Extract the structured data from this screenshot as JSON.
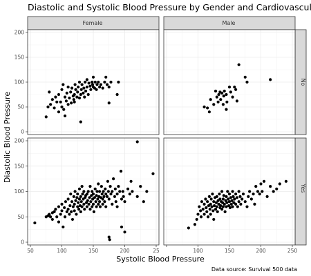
{
  "chart_data": {
    "type": "scatter",
    "title": "Diastolic and Systolic Blood Pressure by Gender and Cardiovascular D",
    "xlabel": "Systolic Blood Pressure",
    "ylabel": "Diastolic Blood Pressure",
    "caption": "Data source: Survival 500 data",
    "facet_columns": [
      "Female",
      "Male"
    ],
    "facet_rows": [
      "No",
      "Yes"
    ],
    "xlim": [
      50,
      250
    ],
    "ylim": [
      0,
      200
    ],
    "x_ticks": [
      50,
      100,
      150,
      200,
      250
    ],
    "x_tick_labels_left": [
      "50",
      "100",
      "150",
      "200",
      "25"
    ],
    "x_tick_labels_right": [
      "",
      "100",
      "150",
      "200",
      "250"
    ],
    "y_ticks": [
      0,
      50,
      100,
      150,
      200
    ],
    "y_tick_labels": [
      "0",
      "50",
      "100",
      "150",
      "200"
    ],
    "grid": true,
    "point_color": "#000000",
    "panels": [
      {
        "col": "Female",
        "row": "No",
        "points": [
          [
            75,
            30
          ],
          [
            78,
            50
          ],
          [
            80,
            80
          ],
          [
            82,
            55
          ],
          [
            85,
            65
          ],
          [
            88,
            48
          ],
          [
            90,
            70
          ],
          [
            92,
            60
          ],
          [
            95,
            40
          ],
          [
            95,
            75
          ],
          [
            98,
            60
          ],
          [
            100,
            50
          ],
          [
            100,
            85
          ],
          [
            102,
            95
          ],
          [
            103,
            45
          ],
          [
            105,
            32
          ],
          [
            105,
            70
          ],
          [
            107,
            62
          ],
          [
            108,
            78
          ],
          [
            110,
            55
          ],
          [
            110,
            90
          ],
          [
            112,
            68
          ],
          [
            114,
            80
          ],
          [
            115,
            58
          ],
          [
            116,
            88
          ],
          [
            118,
            72
          ],
          [
            119,
            65
          ],
          [
            120,
            60
          ],
          [
            120,
            75
          ],
          [
            121,
            95
          ],
          [
            122,
            85
          ],
          [
            124,
            70
          ],
          [
            125,
            80
          ],
          [
            126,
            90
          ],
          [
            128,
            68
          ],
          [
            128,
            100
          ],
          [
            130,
            20
          ],
          [
            130,
            75
          ],
          [
            131,
            85
          ],
          [
            132,
            95
          ],
          [
            134,
            78
          ],
          [
            135,
            88
          ],
          [
            136,
            70
          ],
          [
            137,
            100
          ],
          [
            138,
            82
          ],
          [
            140,
            90
          ],
          [
            140,
            105
          ],
          [
            142,
            75
          ],
          [
            143,
            98
          ],
          [
            145,
            92
          ],
          [
            146,
            85
          ],
          [
            148,
            100
          ],
          [
            149,
            95
          ],
          [
            150,
            90
          ],
          [
            150,
            110
          ],
          [
            152,
            88
          ],
          [
            153,
            100
          ],
          [
            155,
            85
          ],
          [
            156,
            95
          ],
          [
            158,
            100
          ],
          [
            160,
            90
          ],
          [
            162,
            95
          ],
          [
            165,
            88
          ],
          [
            168,
            100
          ],
          [
            170,
            110
          ],
          [
            172,
            95
          ],
          [
            175,
            90
          ],
          [
            175,
            58
          ],
          [
            178,
            100
          ],
          [
            188,
            75
          ],
          [
            190,
            100
          ]
        ]
      },
      {
        "col": "Male",
        "row": "No",
        "points": [
          [
            110,
            50
          ],
          [
            115,
            48
          ],
          [
            118,
            40
          ],
          [
            120,
            65
          ],
          [
            125,
            55
          ],
          [
            128,
            82
          ],
          [
            130,
            70
          ],
          [
            132,
            60
          ],
          [
            133,
            75
          ],
          [
            135,
            80
          ],
          [
            136,
            65
          ],
          [
            138,
            78
          ],
          [
            140,
            55
          ],
          [
            141,
            72
          ],
          [
            142,
            82
          ],
          [
            145,
            45
          ],
          [
            145,
            75
          ],
          [
            146,
            60
          ],
          [
            150,
            90
          ],
          [
            152,
            80
          ],
          [
            155,
            70
          ],
          [
            158,
            90
          ],
          [
            160,
            85
          ],
          [
            162,
            62
          ],
          [
            165,
            135
          ],
          [
            175,
            110
          ],
          [
            178,
            100
          ],
          [
            215,
            105
          ]
        ]
      },
      {
        "col": "Female",
        "row": "Yes",
        "points": [
          [
            57,
            38
          ],
          [
            75,
            50
          ],
          [
            78,
            52
          ],
          [
            80,
            55
          ],
          [
            82,
            50
          ],
          [
            85,
            58
          ],
          [
            85,
            45
          ],
          [
            88,
            60
          ],
          [
            90,
            65
          ],
          [
            92,
            50
          ],
          [
            95,
            70
          ],
          [
            95,
            40
          ],
          [
            98,
            55
          ],
          [
            100,
            62
          ],
          [
            100,
            75
          ],
          [
            102,
            30
          ],
          [
            104,
            68
          ],
          [
            105,
            50
          ],
          [
            106,
            80
          ],
          [
            108,
            60
          ],
          [
            110,
            65
          ],
          [
            110,
            85
          ],
          [
            112,
            55
          ],
          [
            113,
            72
          ],
          [
            114,
            95
          ],
          [
            115,
            60
          ],
          [
            116,
            80
          ],
          [
            117,
            45
          ],
          [
            118,
            70
          ],
          [
            119,
            90
          ],
          [
            120,
            62
          ],
          [
            120,
            75
          ],
          [
            121,
            100
          ],
          [
            122,
            82
          ],
          [
            123,
            55
          ],
          [
            124,
            88
          ],
          [
            125,
            70
          ],
          [
            125,
            95
          ],
          [
            126,
            78
          ],
          [
            127,
            65
          ],
          [
            128,
            105
          ],
          [
            128,
            85
          ],
          [
            129,
            72
          ],
          [
            130,
            90
          ],
          [
            130,
            60
          ],
          [
            131,
            80
          ],
          [
            132,
            110
          ],
          [
            132,
            70
          ],
          [
            133,
            95
          ],
          [
            134,
            85
          ],
          [
            135,
            75
          ],
          [
            135,
            100
          ],
          [
            136,
            65
          ],
          [
            137,
            88
          ],
          [
            138,
            92
          ],
          [
            139,
            78
          ],
          [
            140,
            70
          ],
          [
            140,
            95
          ],
          [
            141,
            82
          ],
          [
            142,
            100
          ],
          [
            143,
            75
          ],
          [
            144,
            88
          ],
          [
            145,
            110
          ],
          [
            145,
            65
          ],
          [
            146,
            80
          ],
          [
            147,
            92
          ],
          [
            148,
            70
          ],
          [
            148,
            100
          ],
          [
            149,
            85
          ],
          [
            150,
            75
          ],
          [
            150,
            95
          ],
          [
            151,
            60
          ],
          [
            152,
            88
          ],
          [
            153,
            105
          ],
          [
            154,
            80
          ],
          [
            155,
            92
          ],
          [
            155,
            70
          ],
          [
            156,
            100
          ],
          [
            157,
            85
          ],
          [
            158,
            75
          ],
          [
            158,
            115
          ],
          [
            159,
            90
          ],
          [
            160,
            80
          ],
          [
            160,
            100
          ],
          [
            161,
            70
          ],
          [
            162,
            88
          ],
          [
            163,
            110
          ],
          [
            164,
            95
          ],
          [
            165,
            85
          ],
          [
            165,
            75
          ],
          [
            166,
            100
          ],
          [
            167,
            90
          ],
          [
            168,
            80
          ],
          [
            169,
            105
          ],
          [
            170,
            95
          ],
          [
            170,
            70
          ],
          [
            172,
            90
          ],
          [
            173,
            120
          ],
          [
            174,
            100
          ],
          [
            175,
            85
          ],
          [
            175,
            10
          ],
          [
            176,
            5
          ],
          [
            177,
            110
          ],
          [
            178,
            95
          ],
          [
            180,
            100
          ],
          [
            180,
            75
          ],
          [
            182,
            125
          ],
          [
            184,
            90
          ],
          [
            185,
            105
          ],
          [
            186,
            80
          ],
          [
            188,
            95
          ],
          [
            188,
            70
          ],
          [
            190,
            110
          ],
          [
            192,
            100
          ],
          [
            194,
            140
          ],
          [
            195,
            85
          ],
          [
            195,
            30
          ],
          [
            197,
            100
          ],
          [
            198,
            90
          ],
          [
            200,
            80
          ],
          [
            200,
            20
          ],
          [
            205,
            105
          ],
          [
            208,
            95
          ],
          [
            210,
            120
          ],
          [
            212,
            100
          ],
          [
            220,
            90
          ],
          [
            220,
            198
          ],
          [
            225,
            110
          ],
          [
            230,
            80
          ],
          [
            235,
            100
          ],
          [
            245,
            135
          ]
        ]
      },
      {
        "col": "Male",
        "row": "Yes",
        "points": [
          [
            85,
            28
          ],
          [
            95,
            35
          ],
          [
            98,
            45
          ],
          [
            100,
            55
          ],
          [
            102,
            70
          ],
          [
            104,
            62
          ],
          [
            105,
            50
          ],
          [
            106,
            80
          ],
          [
            108,
            65
          ],
          [
            110,
            55
          ],
          [
            110,
            75
          ],
          [
            112,
            85
          ],
          [
            113,
            68
          ],
          [
            114,
            60
          ],
          [
            115,
            80
          ],
          [
            116,
            50
          ],
          [
            117,
            72
          ],
          [
            118,
            90
          ],
          [
            119,
            65
          ],
          [
            120,
            75
          ],
          [
            120,
            55
          ],
          [
            121,
            85
          ],
          [
            122,
            70
          ],
          [
            123,
            95
          ],
          [
            124,
            62
          ],
          [
            125,
            80
          ],
          [
            125,
            45
          ],
          [
            126,
            72
          ],
          [
            127,
            88
          ],
          [
            128,
            65
          ],
          [
            129,
            78
          ],
          [
            130,
            70
          ],
          [
            130,
            90
          ],
          [
            131,
            60
          ],
          [
            132,
            82
          ],
          [
            133,
            75
          ],
          [
            134,
            95
          ],
          [
            135,
            68
          ],
          [
            135,
            85
          ],
          [
            136,
            72
          ],
          [
            137,
            80
          ],
          [
            138,
            65
          ],
          [
            138,
            100
          ],
          [
            139,
            78
          ],
          [
            140,
            85
          ],
          [
            140,
            70
          ],
          [
            141,
            92
          ],
          [
            142,
            75
          ],
          [
            143,
            60
          ],
          [
            144,
            82
          ],
          [
            145,
            90
          ],
          [
            145,
            70
          ],
          [
            146,
            78
          ],
          [
            147,
            100
          ],
          [
            148,
            85
          ],
          [
            149,
            72
          ],
          [
            150,
            80
          ],
          [
            150,
            95
          ],
          [
            151,
            68
          ],
          [
            152,
            88
          ],
          [
            153,
            75
          ],
          [
            154,
            82
          ],
          [
            155,
            70
          ],
          [
            155,
            100
          ],
          [
            156,
            90
          ],
          [
            157,
            78
          ],
          [
            158,
            85
          ],
          [
            160,
            75
          ],
          [
            160,
            95
          ],
          [
            162,
            88
          ],
          [
            163,
            70
          ],
          [
            165,
            80
          ],
          [
            165,
            100
          ],
          [
            167,
            90
          ],
          [
            168,
            75
          ],
          [
            170,
            85
          ],
          [
            172,
            95
          ],
          [
            175,
            80
          ],
          [
            178,
            70
          ],
          [
            180,
            90
          ],
          [
            182,
            100
          ],
          [
            185,
            85
          ],
          [
            188,
            95
          ],
          [
            190,
            75
          ],
          [
            192,
            110
          ],
          [
            195,
            100
          ],
          [
            198,
            95
          ],
          [
            200,
            115
          ],
          [
            202,
            100
          ],
          [
            205,
            120
          ],
          [
            210,
            90
          ],
          [
            215,
            110
          ],
          [
            220,
            100
          ],
          [
            225,
            105
          ],
          [
            230,
            115
          ],
          [
            240,
            120
          ]
        ]
      }
    ]
  }
}
